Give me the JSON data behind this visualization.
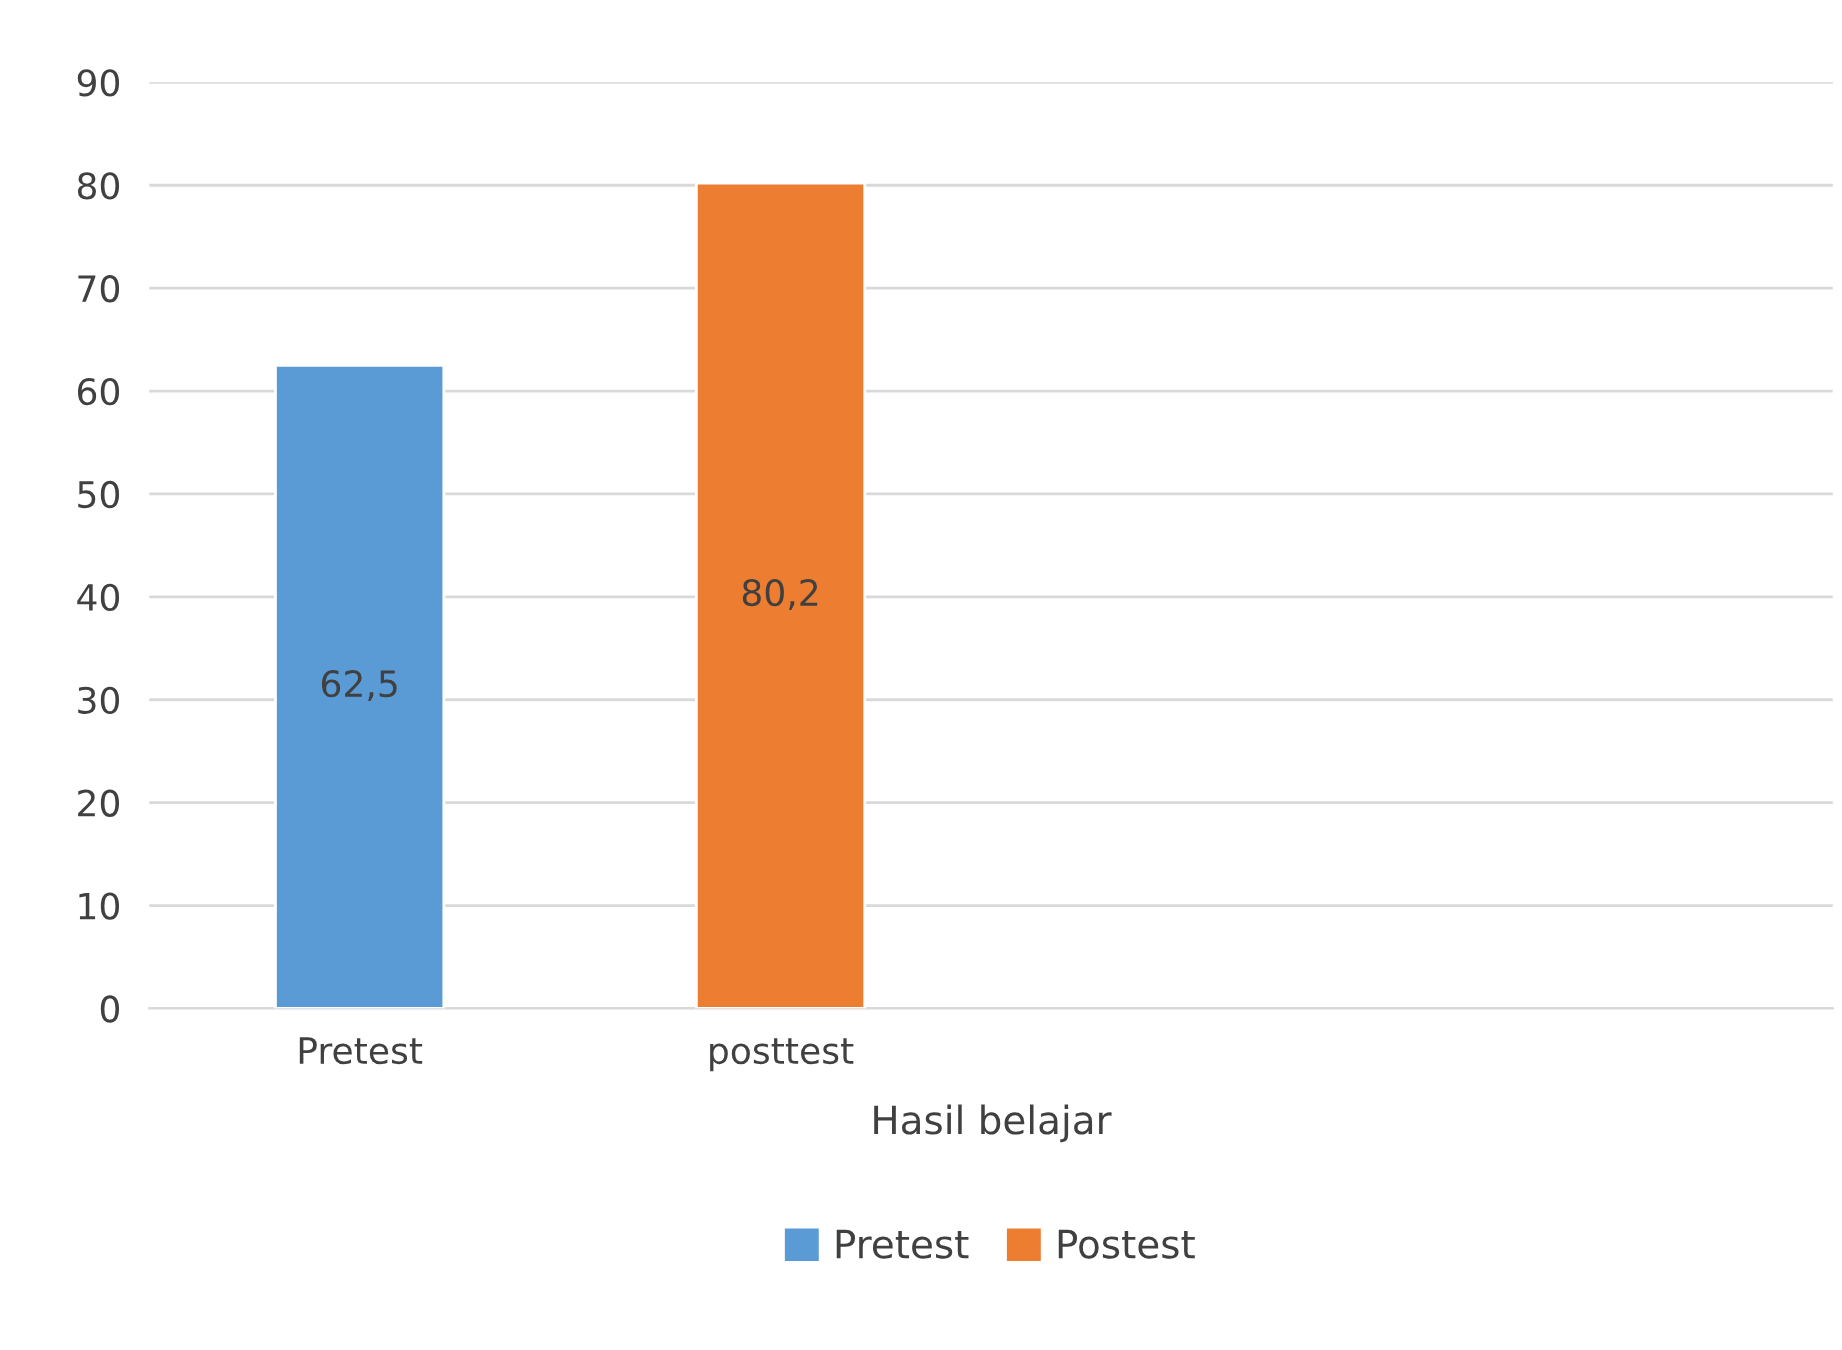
{
  "chart_data": {
    "type": "bar",
    "xlabel": "Hasil belajar",
    "categories": [
      "Pretest",
      "posttest",
      null,
      null
    ],
    "series": [
      {
        "name": "Pretest",
        "color": "#5b9bd5",
        "values": [
          62.5,
          null,
          null,
          null
        ],
        "value_labels": [
          "62,5",
          null,
          null,
          null
        ]
      },
      {
        "name": "Postest",
        "color": "#ed7d31",
        "values": [
          null,
          80.2,
          null,
          null
        ],
        "value_labels": [
          null,
          "80,2",
          null,
          null
        ]
      }
    ],
    "ylim": [
      0,
      90
    ],
    "yticks": [
      0,
      10,
      20,
      30,
      40,
      50,
      60,
      70,
      80,
      90
    ],
    "grid": "y",
    "legend": "bottom"
  }
}
